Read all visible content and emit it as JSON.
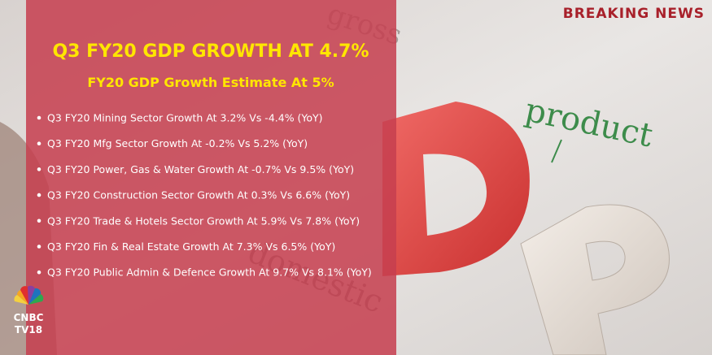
{
  "header": {
    "breaking": "BREAKING NEWS"
  },
  "panel": {
    "title": "Q3 FY20 GDP GROWTH AT 4.7%",
    "subtitle": "FY20 GDP Growth Estimate At 5%",
    "bullets": [
      "Q3 FY20 Mining Sector Growth At 3.2% Vs -4.4% (YoY)",
      "Q3 FY20 Mfg Sector Growth At -0.2% Vs 5.2% (YoY)",
      "Q3 FY20 Power, Gas & Water Growth At -0.7% Vs 9.5% (YoY)",
      "Q3 FY20 Construction Sector Growth At 0.3% Vs 6.6% (YoY)",
      "Q3 FY20 Trade & Hotels Sector Growth At 5.9% Vs 7.8% (YoY)",
      "Q3 FY20 Fin & Real Estate Growth At 7.3% Vs 6.5% (YoY)",
      "Q3 FY20 Public Admin & Defence Growth At 9.7% Vs 8.1% (YoY)"
    ]
  },
  "background": {
    "words": [
      "gross",
      "product",
      "domestic"
    ]
  },
  "logo": {
    "brand": "CNBC",
    "channel": "TV18"
  }
}
